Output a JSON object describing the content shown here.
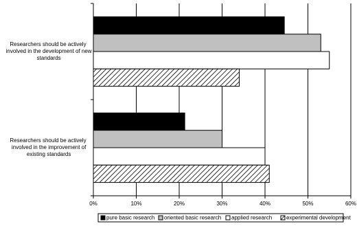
{
  "chart_data": {
    "type": "hbar",
    "categories": [
      "Researchers should be actively involved in the development of new standards",
      "Researchers should be actively involved in the improvement of existing standards"
    ],
    "series": [
      {
        "name": "pure basic research",
        "color": "#000000",
        "values": [
          44.5,
          21.3
        ]
      },
      {
        "name": "oriented basic research",
        "color": "#c0c0c0",
        "values": [
          53,
          30
        ]
      },
      {
        "name": "applied research",
        "color": "#ffffff",
        "values": [
          55,
          40
        ]
      },
      {
        "name": "experimental development",
        "color": "#ffffff",
        "pattern": "diagonal",
        "values": [
          34,
          41
        ]
      }
    ],
    "xlim": [
      0,
      60
    ],
    "xticks": [
      {
        "value": 0,
        "label": "0%"
      },
      {
        "value": 10,
        "label": "10%"
      },
      {
        "value": 20,
        "label": "20%"
      },
      {
        "value": 30,
        "label": "30%"
      },
      {
        "value": 40,
        "label": "40%"
      },
      {
        "value": 50,
        "label": "50%"
      },
      {
        "value": 60,
        "label": "60%"
      }
    ],
    "grid": true,
    "legend": "bottom"
  }
}
